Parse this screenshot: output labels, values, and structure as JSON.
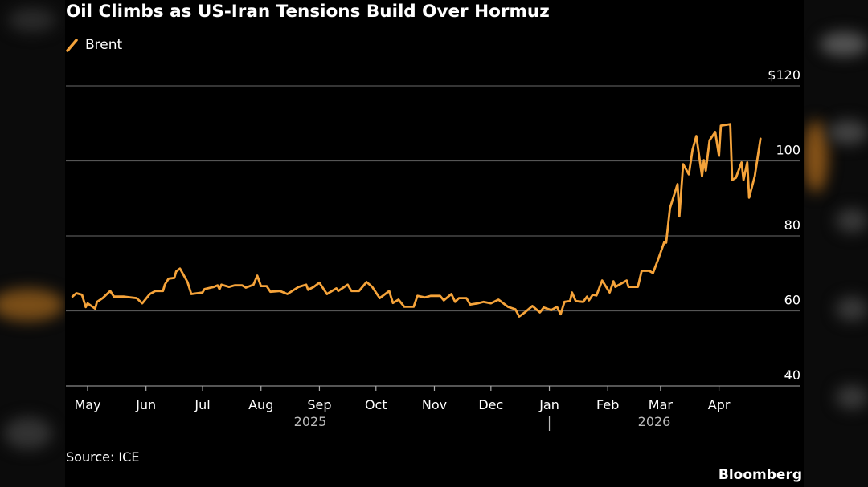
{
  "title": "Oil Climbs as US-Iran Tensions Build Over Hormuz",
  "source": "Source: ICE",
  "brand": "Bloomberg",
  "colors": {
    "series": "#f5a33a",
    "grid": "#555555",
    "background": "#000000",
    "text": "#ffffff"
  },
  "legend_icon": "diagonal-line-swatch",
  "chart_data": {
    "type": "line",
    "title": "Oil Climbs as US-Iran Tensions Build Over Hormuz",
    "xlabel": "",
    "ylabel": "",
    "ylim": [
      40,
      120
    ],
    "y_ticks": [
      {
        "value": 120,
        "label": "$120"
      },
      {
        "value": 100,
        "label": "100"
      },
      {
        "value": 80,
        "label": "80"
      },
      {
        "value": 60,
        "label": "60"
      },
      {
        "value": 40,
        "label": "40"
      }
    ],
    "x_ticks": [
      {
        "date": "2025-05-01",
        "label": "May"
      },
      {
        "date": "2025-06-01",
        "label": "Jun"
      },
      {
        "date": "2025-07-01",
        "label": "Jul"
      },
      {
        "date": "2025-08-01",
        "label": "Aug"
      },
      {
        "date": "2025-09-01",
        "label": "Sep"
      },
      {
        "date": "2025-10-01",
        "label": "Oct"
      },
      {
        "date": "2025-11-01",
        "label": "Nov"
      },
      {
        "date": "2025-12-01",
        "label": "Dec"
      },
      {
        "date": "2026-01-01",
        "label": "Jan"
      },
      {
        "date": "2026-02-01",
        "label": "Feb"
      },
      {
        "date": "2026-03-01",
        "label": "Mar"
      },
      {
        "date": "2026-04-01",
        "label": "Apr"
      }
    ],
    "year_labels": [
      {
        "date": "2025-09-01",
        "label": "2025"
      },
      {
        "date": "2026-03-01",
        "label": "2026"
      }
    ],
    "grid": true,
    "legend": "top-left",
    "series": [
      {
        "name": "Brent",
        "color": "#f5a33a",
        "dates": [
          "2025-04-23",
          "2025-04-25",
          "2025-04-28",
          "2025-04-30",
          "2025-05-01",
          "2025-05-05",
          "2025-05-06",
          "2025-05-09",
          "2025-05-13",
          "2025-05-15",
          "2025-05-20",
          "2025-05-27",
          "2025-05-30",
          "2025-06-03",
          "2025-06-06",
          "2025-06-10",
          "2025-06-11",
          "2025-06-13",
          "2025-06-16",
          "2025-06-17",
          "2025-06-19",
          "2025-06-23",
          "2025-06-25",
          "2025-07-01",
          "2025-07-02",
          "2025-07-07",
          "2025-07-09",
          "2025-07-10",
          "2025-07-11",
          "2025-07-15",
          "2025-07-18",
          "2025-07-22",
          "2025-07-24",
          "2025-07-28",
          "2025-07-30",
          "2025-08-01",
          "2025-08-04",
          "2025-08-06",
          "2025-08-11",
          "2025-08-15",
          "2025-08-21",
          "2025-08-25",
          "2025-08-26",
          "2025-08-29",
          "2025-09-01",
          "2025-09-05",
          "2025-09-10",
          "2025-09-11",
          "2025-09-16",
          "2025-09-18",
          "2025-09-22",
          "2025-09-26",
          "2025-09-29",
          "2025-10-03",
          "2025-10-08",
          "2025-10-10",
          "2025-10-13",
          "2025-10-16",
          "2025-10-21",
          "2025-10-23",
          "2025-10-27",
          "2025-10-30",
          "2025-11-04",
          "2025-11-06",
          "2025-11-10",
          "2025-11-12",
          "2025-11-14",
          "2025-11-18",
          "2025-11-20",
          "2025-11-24",
          "2025-11-27",
          "2025-12-01",
          "2025-12-05",
          "2025-12-10",
          "2025-12-14",
          "2025-12-16",
          "2025-12-19",
          "2025-12-23",
          "2025-12-27",
          "2025-12-29",
          "2026-01-02",
          "2026-01-05",
          "2026-01-07",
          "2026-01-09",
          "2026-01-12",
          "2026-01-13",
          "2026-01-15",
          "2026-01-19",
          "2026-01-21",
          "2026-01-22",
          "2026-01-24",
          "2026-01-26",
          "2026-01-29",
          "2026-02-02",
          "2026-02-04",
          "2026-02-05",
          "2026-02-11",
          "2026-02-12",
          "2026-02-17",
          "2026-02-19",
          "2026-02-23",
          "2026-02-25",
          "2026-02-28",
          "2026-03-03",
          "2026-03-04",
          "2026-03-06",
          "2026-03-10",
          "2026-03-11",
          "2026-03-13",
          "2026-03-16",
          "2026-03-18",
          "2026-03-20",
          "2026-03-23",
          "2026-03-24",
          "2026-03-25",
          "2026-03-27",
          "2026-03-30",
          "2026-04-01",
          "2026-04-02",
          "2026-04-07",
          "2026-04-08",
          "2026-04-10",
          "2026-04-13",
          "2026-04-14",
          "2026-04-16",
          "2026-04-17",
          "2026-04-20",
          "2026-04-23"
        ],
        "values": [
          63.8,
          64.7,
          64.3,
          61.0,
          62.0,
          60.6,
          62.4,
          63.4,
          65.3,
          63.8,
          63.8,
          63.4,
          62.0,
          64.5,
          65.3,
          65.3,
          67.0,
          68.6,
          68.8,
          70.5,
          71.3,
          67.7,
          64.5,
          64.9,
          65.8,
          66.4,
          66.8,
          65.8,
          67.0,
          66.4,
          66.8,
          66.8,
          66.2,
          67.0,
          69.4,
          66.6,
          66.6,
          65.1,
          65.3,
          64.5,
          66.4,
          67.0,
          65.6,
          66.4,
          67.5,
          64.5,
          66.0,
          65.3,
          67.0,
          65.3,
          65.3,
          67.7,
          66.4,
          63.4,
          65.3,
          62.1,
          63.0,
          61.1,
          61.1,
          64.0,
          63.6,
          64.0,
          64.0,
          62.8,
          64.5,
          62.4,
          63.4,
          63.4,
          61.7,
          62.0,
          62.4,
          62.0,
          63.0,
          61.1,
          60.4,
          58.5,
          59.6,
          61.3,
          59.6,
          60.9,
          60.2,
          61.1,
          59.1,
          62.4,
          62.6,
          64.9,
          62.6,
          62.4,
          63.8,
          62.8,
          64.3,
          64.1,
          68.1,
          64.9,
          67.9,
          66.4,
          68.1,
          66.4,
          66.4,
          70.7,
          70.7,
          70.1,
          74.1,
          78.4,
          78.2,
          87.4,
          93.8,
          85.2,
          99.1,
          96.4,
          103.0,
          106.6,
          95.9,
          100.2,
          97.4,
          105.5,
          107.7,
          101.3,
          109.4,
          109.8,
          94.9,
          95.5,
          99.6,
          94.9,
          99.6,
          90.2,
          95.9,
          105.9
        ]
      }
    ]
  }
}
